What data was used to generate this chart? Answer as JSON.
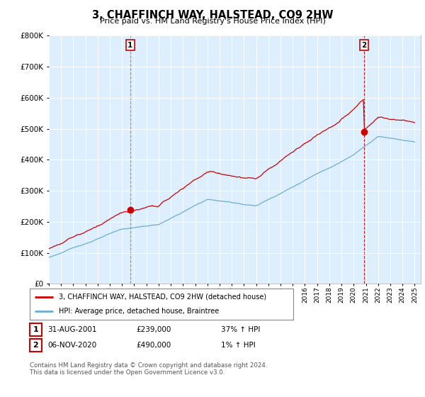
{
  "title": "3, CHAFFINCH WAY, HALSTEAD, CO9 2HW",
  "subtitle": "Price paid vs. HM Land Registry's House Price Index (HPI)",
  "ylim": [
    0,
    800000
  ],
  "xlim_start": 1995.3,
  "xlim_end": 2025.5,
  "hpi_color": "#6aaed6",
  "price_color": "#CC0000",
  "sale1_year": 2001.67,
  "sale1_price": 239000,
  "sale2_year": 2020.85,
  "sale2_price": 490000,
  "legend_line1": "3, CHAFFINCH WAY, HALSTEAD, CO9 2HW (detached house)",
  "legend_line2": "HPI: Average price, detached house, Braintree",
  "annotation1_date": "31-AUG-2001",
  "annotation1_price": "£239,000",
  "annotation1_hpi": "37% ↑ HPI",
  "annotation2_date": "06-NOV-2020",
  "annotation2_price": "£490,000",
  "annotation2_hpi": "1% ↑ HPI",
  "footer": "Contains HM Land Registry data © Crown copyright and database right 2024.\nThis data is licensed under the Open Government Licence v3.0.",
  "background_color": "#ffffff",
  "chart_bg_color": "#ddeeff",
  "grid_color": "#ffffff"
}
